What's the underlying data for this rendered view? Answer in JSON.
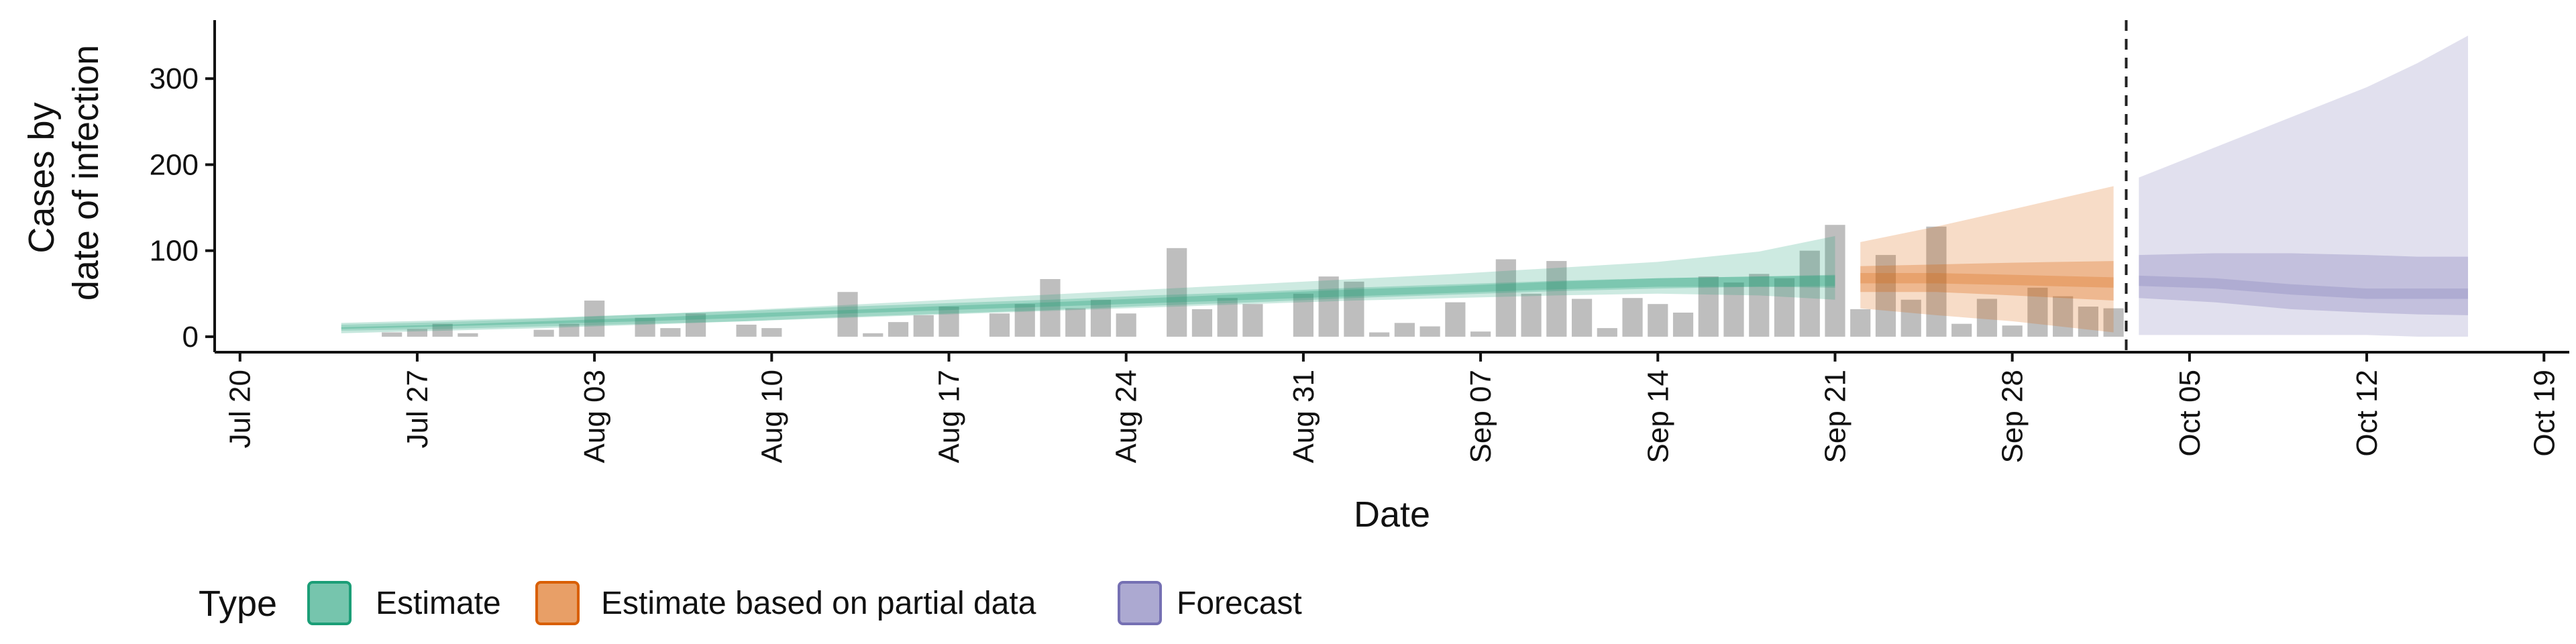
{
  "chart_data": {
    "type": "bar",
    "xlabel": "Date",
    "ylabel": [
      "Cases by",
      "date of infection"
    ],
    "x_ticks": [
      "Jul 20",
      "Jul 27",
      "Aug 03",
      "Aug 10",
      "Aug 17",
      "Aug 24",
      "Aug 31",
      "Sep 07",
      "Sep 14",
      "Sep 21",
      "Sep 28",
      "Oct 05",
      "Oct 12",
      "Oct 19"
    ],
    "y_ticks": [
      0,
      100,
      200,
      300
    ],
    "xlim": [
      "2020-07-19",
      "2020-10-20"
    ],
    "ylim": [
      -18,
      368
    ],
    "grid": false,
    "forecast_cutoff_date": "2020-10-02",
    "reported_cases": {
      "color": "#b3b3b3",
      "dates": [
        "2020-07-26",
        "2020-07-27",
        "2020-07-28",
        "2020-07-29",
        "2020-08-01",
        "2020-08-02",
        "2020-08-03",
        "2020-08-05",
        "2020-08-06",
        "2020-08-07",
        "2020-08-09",
        "2020-08-10",
        "2020-08-13",
        "2020-08-14",
        "2020-08-15",
        "2020-08-16",
        "2020-08-17",
        "2020-08-19",
        "2020-08-20",
        "2020-08-21",
        "2020-08-22",
        "2020-08-23",
        "2020-08-24",
        "2020-08-26",
        "2020-08-27",
        "2020-08-28",
        "2020-08-29",
        "2020-08-31",
        "2020-09-01",
        "2020-09-02",
        "2020-09-03",
        "2020-09-04",
        "2020-09-05",
        "2020-09-06",
        "2020-09-07",
        "2020-09-08",
        "2020-09-09",
        "2020-09-10",
        "2020-09-11",
        "2020-09-12",
        "2020-09-13",
        "2020-09-14",
        "2020-09-15",
        "2020-09-16",
        "2020-09-17",
        "2020-09-18",
        "2020-09-19",
        "2020-09-20",
        "2020-09-21",
        "2020-09-22",
        "2020-09-23",
        "2020-09-24",
        "2020-09-25",
        "2020-09-26",
        "2020-09-27",
        "2020-09-28",
        "2020-09-29",
        "2020-09-30",
        "2020-10-01",
        "2020-10-02"
      ],
      "values": [
        5,
        9,
        15,
        4,
        8,
        15,
        42,
        22,
        10,
        27,
        14,
        10,
        52,
        4,
        17,
        25,
        35,
        27,
        38,
        67,
        33,
        43,
        27,
        103,
        32,
        45,
        38,
        50,
        70,
        64,
        5,
        16,
        12,
        40,
        6,
        90,
        50,
        88,
        44,
        10,
        45,
        38,
        28,
        70,
        63,
        73,
        68,
        100,
        130,
        32,
        95,
        43,
        128,
        15,
        44,
        13,
        57,
        47,
        35,
        33
      ]
    },
    "series": [
      {
        "name": "Estimate",
        "color": "#1b9e77",
        "dates": [
          "2020-07-24",
          "2020-07-28",
          "2020-08-01",
          "2020-08-05",
          "2020-08-09",
          "2020-08-13",
          "2020-08-17",
          "2020-08-21",
          "2020-08-25",
          "2020-08-29",
          "2020-09-02",
          "2020-09-06",
          "2020-09-10",
          "2020-09-14",
          "2020-09-18",
          "2020-09-21"
        ],
        "median": [
          10,
          13,
          16,
          20,
          24,
          29,
          33,
          37,
          42,
          46,
          51,
          55,
          59,
          62,
          64,
          65
        ],
        "lower_50": [
          9,
          12,
          15,
          18,
          22,
          27,
          31,
          35,
          39,
          43,
          47,
          51,
          55,
          58,
          58,
          57
        ],
        "upper_50": [
          11,
          14,
          18,
          22,
          27,
          31,
          36,
          40,
          45,
          50,
          55,
          59,
          64,
          68,
          70,
          72
        ],
        "lower_90": [
          7,
          9,
          12,
          15,
          18,
          22,
          26,
          30,
          34,
          38,
          42,
          45,
          48,
          50,
          48,
          43
        ],
        "upper_90": [
          14,
          17,
          21,
          26,
          31,
          37,
          43,
          49,
          55,
          61,
          67,
          73,
          80,
          87,
          99,
          117
        ]
      },
      {
        "name": "Estimate based on partial data",
        "color": "#d95f02",
        "dates": [
          "2020-09-22",
          "2020-09-25",
          "2020-09-28",
          "2020-10-02"
        ],
        "median": [
          68,
          68,
          66,
          63
        ],
        "lower_50": [
          52,
          52,
          48,
          42
        ],
        "upper_50": [
          82,
          84,
          86,
          88
        ],
        "lower_90": [
          33,
          25,
          18,
          5
        ],
        "upper_90": [
          110,
          128,
          148,
          175
        ]
      },
      {
        "name": "Forecast",
        "color": "#7570b3",
        "dates": [
          "2020-10-03",
          "2020-10-06",
          "2020-10-09",
          "2020-10-12",
          "2020-10-14",
          "2020-10-16"
        ],
        "median": [
          65,
          62,
          55,
          50,
          50,
          50
        ],
        "lower_50": [
          45,
          40,
          32,
          28,
          26,
          25
        ],
        "upper_50": [
          95,
          97,
          97,
          95,
          93,
          93
        ],
        "lower_90": [
          2,
          2,
          2,
          2,
          0,
          0
        ],
        "upper_90": [
          185,
          220,
          255,
          290,
          318,
          350
        ]
      }
    ]
  },
  "legend": {
    "title": "Type",
    "items": [
      {
        "label": "Estimate",
        "color": "#1b9e77"
      },
      {
        "label": "Estimate based on partial data",
        "color": "#d95f02"
      },
      {
        "label": "Forecast",
        "color": "#7570b3"
      }
    ]
  }
}
